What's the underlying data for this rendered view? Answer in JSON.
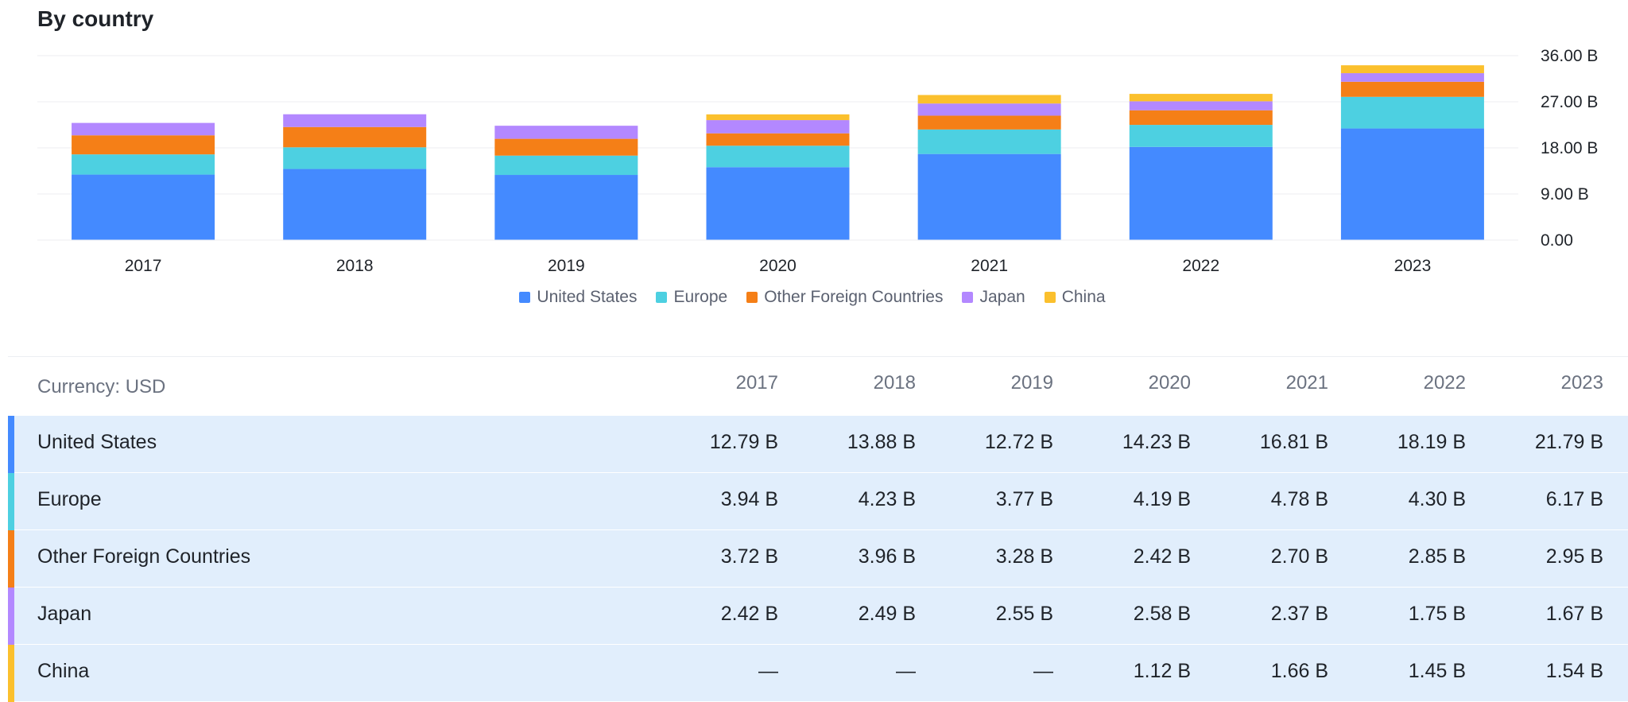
{
  "section_title": "By country",
  "chart_data": {
    "type": "bar",
    "stacked": true,
    "categories": [
      "2017",
      "2018",
      "2019",
      "2020",
      "2021",
      "2022",
      "2023"
    ],
    "series": [
      {
        "name": "United States",
        "color": "#448aff",
        "values": [
          12.79,
          13.88,
          12.72,
          14.23,
          16.81,
          18.19,
          21.79
        ]
      },
      {
        "name": "Europe",
        "color": "#4dd0e1",
        "values": [
          3.94,
          4.23,
          3.77,
          4.19,
          4.78,
          4.3,
          6.17
        ]
      },
      {
        "name": "Other Foreign Countries",
        "color": "#f57f17",
        "values": [
          3.72,
          3.96,
          3.28,
          2.42,
          2.7,
          2.85,
          2.95
        ]
      },
      {
        "name": "Japan",
        "color": "#b388ff",
        "values": [
          2.42,
          2.49,
          2.55,
          2.58,
          2.37,
          1.75,
          1.67
        ]
      },
      {
        "name": "China",
        "color": "#fbc02d",
        "values": [
          0,
          0,
          0,
          1.12,
          1.66,
          1.45,
          1.54
        ]
      }
    ],
    "yticks": [
      "36.00 B",
      "27.00 B",
      "18.00 B",
      "9.00 B",
      "0.00"
    ],
    "ylim": [
      0,
      36
    ],
    "grid": true,
    "legend_position": "bottom-center"
  },
  "table": {
    "currency_label": "Currency: USD",
    "years": [
      "2017",
      "2018",
      "2019",
      "2020",
      "2021",
      "2022",
      "2023"
    ],
    "rows": [
      {
        "label": "United States",
        "color": "#448aff",
        "cells": [
          "12.79 B",
          "13.88 B",
          "12.72 B",
          "14.23 B",
          "16.81 B",
          "18.19 B",
          "21.79 B"
        ]
      },
      {
        "label": "Europe",
        "color": "#4dd0e1",
        "cells": [
          "3.94 B",
          "4.23 B",
          "3.77 B",
          "4.19 B",
          "4.78 B",
          "4.30 B",
          "6.17 B"
        ]
      },
      {
        "label": "Other Foreign Countries",
        "color": "#f57f17",
        "cells": [
          "3.72 B",
          "3.96 B",
          "3.28 B",
          "2.42 B",
          "2.70 B",
          "2.85 B",
          "2.95 B"
        ]
      },
      {
        "label": "Japan",
        "color": "#b388ff",
        "cells": [
          "2.42 B",
          "2.49 B",
          "2.55 B",
          "2.58 B",
          "2.37 B",
          "1.75 B",
          "1.67 B"
        ]
      },
      {
        "label": "China",
        "color": "#fbc02d",
        "cells": [
          "—",
          "—",
          "—",
          "1.12 B",
          "1.66 B",
          "1.45 B",
          "1.54 B"
        ]
      }
    ]
  }
}
